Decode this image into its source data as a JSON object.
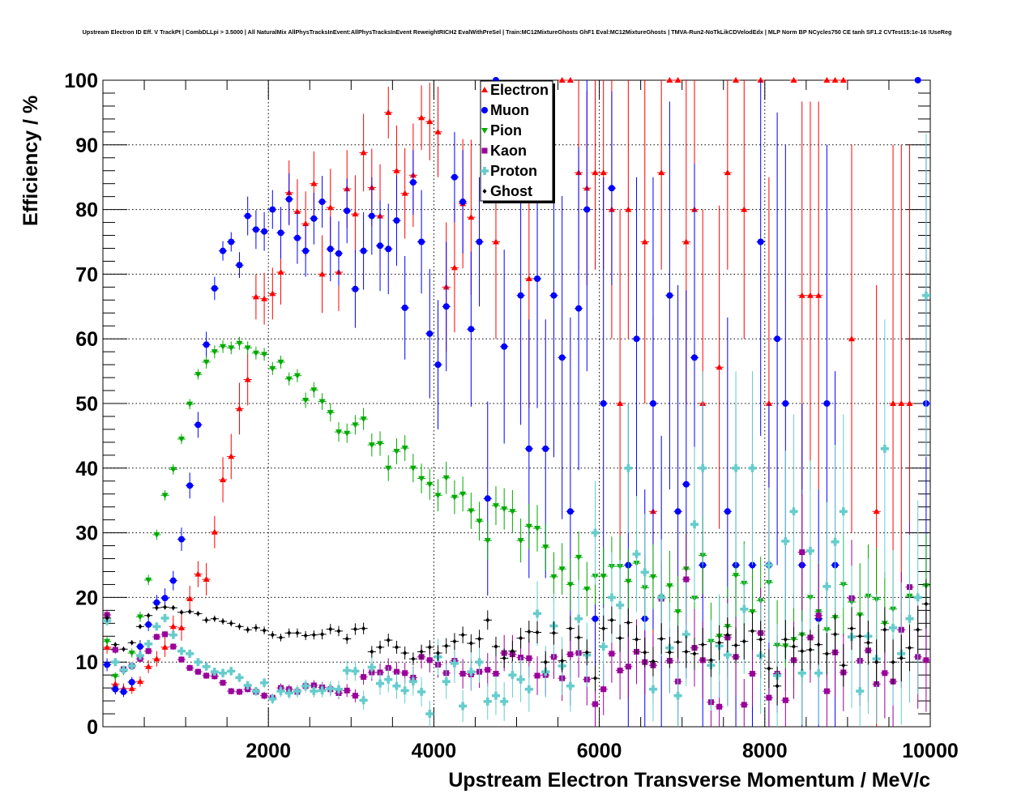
{
  "chart_data": {
    "type": "scatter",
    "title": "Upstream Electron ID Eff. V TrackPt | CombDLLpi > 3.5000 | All NaturalMix AllPhysTracksInEvent:AllPhysTracksInEvent ReweightRICH2 EvalWithPreSel | Train:MC12MixtureGhosts GhF1 Eval:MC12MixtureGhosts | TMVA-Run2-NoTkLikCDVelodEdx | MLP Norm BP NCycles750 CE tanh SF1.2 CVTest15:1e-16 !UseReg",
    "xlabel": "Upstream Electron Transverse Momentum / MeV/c",
    "ylabel": "Efficiency / %",
    "xlim": [
      0,
      10000
    ],
    "ylim": [
      0,
      100
    ],
    "bin_width": 100,
    "bin_start": 50,
    "xticks": [
      2000,
      4000,
      6000,
      8000,
      10000
    ],
    "yticks": [
      0,
      10,
      20,
      30,
      40,
      50,
      60,
      70,
      80,
      90,
      100
    ],
    "grid": true,
    "legend_position": "top-center",
    "series": [
      {
        "name": "Electron",
        "color": "#ff0000",
        "marker": "triangle-up",
        "values": [
          12.3,
          6.6,
          5.9,
          5.9,
          7,
          9.3,
          10.5,
          12.3,
          15.5,
          15.3,
          19.8,
          23.6,
          22.8,
          30.1,
          38.2,
          41.8,
          49.2,
          53.7,
          66.5,
          66.2,
          67,
          70.3,
          82.6,
          79.7,
          77.8,
          84,
          70,
          80.3,
          70.3,
          83.2,
          79.3,
          88.8,
          83.4,
          79,
          95,
          86,
          82.5,
          85.3,
          94.2,
          93.6,
          92,
          68,
          71,
          80.9,
          78.8,
          null,
          null,
          75,
          null,
          null,
          null,
          69.3,
          null,
          null,
          null,
          100,
          100,
          85.7,
          83.3,
          85.7,
          85.7,
          80,
          50,
          80,
          null,
          75,
          33.3,
          85.7,
          100,
          100,
          75,
          80,
          50,
          null,
          55.6,
          85.7,
          100,
          80,
          null,
          100,
          50,
          null,
          null,
          100,
          66.7,
          66.7,
          66.7,
          100,
          100,
          100,
          60,
          null,
          null,
          33.3,
          null,
          50,
          50,
          50,
          null,
          null
        ],
        "errors": [
          1,
          0.8,
          0.8,
          0.8,
          0.8,
          1,
          1.2,
          1.5,
          1.7,
          2,
          2,
          2,
          2.5,
          2.5,
          3.5,
          3.5,
          4,
          4,
          3.5,
          4,
          4,
          5,
          5,
          5,
          5,
          5,
          6,
          6,
          6,
          6,
          6,
          6,
          6,
          8,
          4,
          7,
          7,
          8,
          5,
          6,
          7,
          10,
          10,
          10,
          12,
          0,
          0,
          15,
          0,
          0,
          0,
          20,
          0,
          0,
          0,
          0,
          0,
          15,
          15,
          15,
          15,
          20,
          30,
          20,
          0,
          25,
          30,
          15,
          0,
          0,
          25,
          20,
          30,
          0,
          25,
          15,
          0,
          20,
          0,
          0,
          35,
          0,
          0,
          0,
          30,
          30,
          30,
          0,
          0,
          0,
          30,
          0,
          0,
          35,
          0,
          40,
          40,
          40,
          0,
          0
        ]
      },
      {
        "name": "Muon",
        "color": "#0000ff",
        "marker": "circle",
        "values": [
          9.6,
          5.8,
          5.4,
          6.9,
          12.4,
          15.8,
          19.2,
          19.9,
          22.6,
          29,
          37.3,
          46.7,
          59.1,
          67.8,
          73.6,
          75,
          71.4,
          79,
          76.9,
          76.6,
          80,
          76.4,
          81.6,
          75.6,
          73.6,
          78.6,
          81.2,
          73.9,
          73.2,
          79.8,
          67.7,
          73.6,
          79,
          74.4,
          73.9,
          78.3,
          64.8,
          84.2,
          75,
          60.8,
          56,
          65,
          85,
          81.2,
          61.5,
          75,
          35.3,
          100,
          58.8,
          null,
          66.7,
          43,
          69.3,
          43,
          66.7,
          57.1,
          33.3,
          64.7,
          80,
          16.7,
          50,
          83.3,
          null,
          25,
          60,
          16.7,
          50,
          20,
          66.7,
          33.3,
          37.5,
          57.1,
          25,
          null,
          null,
          33.3,
          25,
          null,
          25,
          75,
          25,
          60,
          50,
          null,
          25,
          null,
          16.7,
          50,
          25,
          null,
          null,
          null,
          null,
          null,
          null,
          null,
          null,
          null,
          100,
          50
        ],
        "errors": [
          1,
          0.8,
          0.8,
          0.8,
          1,
          1,
          1.2,
          1.5,
          1.5,
          1.8,
          2,
          2,
          2,
          1.8,
          1.5,
          1.5,
          2,
          3,
          3,
          3,
          3,
          4,
          4,
          4,
          4,
          4,
          4,
          5,
          5,
          5,
          6,
          6,
          6,
          7,
          7,
          7,
          8,
          5,
          8,
          10,
          10,
          10,
          7,
          8,
          12,
          10,
          15,
          0,
          15,
          0,
          20,
          20,
          20,
          20,
          25,
          25,
          30,
          25,
          25,
          20,
          35,
          15,
          0,
          25,
          25,
          20,
          35,
          25,
          30,
          35,
          30,
          30,
          25,
          0,
          0,
          30,
          25,
          0,
          25,
          30,
          25,
          35,
          40,
          0,
          25,
          0,
          20,
          40,
          30,
          0,
          0,
          0,
          0,
          0,
          0,
          0,
          0,
          0,
          0,
          40
        ]
      },
      {
        "name": "Pion",
        "color": "#00aa00",
        "marker": "triangle-down",
        "values": [
          13.2,
          7.8,
          8.6,
          11.4,
          17,
          22.7,
          29.7,
          35.8,
          39.8,
          44.5,
          49.9,
          54.5,
          56.4,
          58,
          58.8,
          58.6,
          59.3,
          58.6,
          57.8,
          57.6,
          55.4,
          56.4,
          53.8,
          54.3,
          50.5,
          52.1,
          50.3,
          48.6,
          45.6,
          45.4,
          46.7,
          47.6,
          43.6,
          43.8,
          40,
          42.6,
          43.1,
          40,
          38.4,
          37.5,
          35.8,
          38.5,
          35.5,
          36,
          33.4,
          31.8,
          28.8,
          34.2,
          33.7,
          33.3,
          28.8,
          31,
          30.7,
          27.8,
          23.2,
          24.4,
          22,
          26.2,
          21.3,
          23.3,
          23.3,
          24.8,
          24.8,
          22.5,
          25.3,
          21.5,
          23.2,
          20,
          21.8,
          17.8,
          24.4,
          19.9,
          26.5,
          13.2,
          14,
          15.5,
          23.4,
          22.2,
          17.8,
          19.5,
          22.3,
          12.6,
          12.5,
          13.5,
          14.2,
          20,
          17.8,
          15,
          16.9,
          22,
          19.3,
          17.3,
          20.2,
          19.7,
          16,
          18.2,
          null,
          20.2,
          null,
          21.8
        ],
        "errors": [
          0.8,
          0.6,
          0.6,
          0.7,
          0.8,
          0.8,
          0.8,
          0.8,
          0.8,
          0.8,
          0.8,
          0.8,
          1,
          1,
          1,
          1,
          1,
          1,
          1,
          1,
          1,
          1,
          1,
          1,
          1.2,
          1.2,
          1.3,
          1.4,
          1.5,
          1.5,
          1.5,
          1.7,
          1.8,
          1.9,
          2,
          2,
          2,
          2.2,
          2.3,
          2.4,
          2.5,
          2.5,
          2.6,
          2.7,
          2.8,
          3,
          3,
          3,
          3.2,
          3.3,
          3.4,
          3.5,
          3.6,
          3.7,
          3.8,
          4,
          4,
          4,
          4.2,
          4.4,
          4.5,
          4.6,
          4.8,
          5,
          5,
          5,
          5,
          5.2,
          5.4,
          5.5,
          5.6,
          5.8,
          6,
          6,
          6,
          6.2,
          6.4,
          6.5,
          6.6,
          6.8,
          7,
          7,
          7,
          7.2,
          7.4,
          7.5,
          7.6,
          7.8,
          8,
          8,
          8,
          8,
          8,
          8,
          8,
          8,
          0,
          8,
          0,
          8
        ]
      },
      {
        "name": "Kaon",
        "color": "#990099",
        "marker": "square",
        "values": [
          17.3,
          11.9,
          8.9,
          9.4,
          10.5,
          11.7,
          13.9,
          14.3,
          12.4,
          10.4,
          9.1,
          8.5,
          7.9,
          7.8,
          6.8,
          5.5,
          5.4,
          5.8,
          5.4,
          4.8,
          4.5,
          6,
          5.8,
          5.4,
          6.3,
          6.4,
          6.1,
          5.8,
          5.2,
          5.6,
          4.8,
          7.7,
          8.4,
          8.4,
          9.1,
          8.5,
          8.3,
          7.6,
          10.8,
          10.3,
          9.6,
          8.3,
          10.2,
          8.2,
          8.1,
          8.5,
          8.8,
          8.2,
          11.4,
          11.2,
          10.7,
          10.6,
          7.9,
          8,
          10.8,
          7.5,
          11.2,
          11.4,
          7.3,
          3.5,
          5.8,
          11.3,
          8.7,
          9.3,
          11.6,
          10,
          9.5,
          19.8,
          10.2,
          7,
          22.8,
          12.2,
          10.3,
          3.8,
          3.1,
          13.8,
          10.8,
          3.4,
          8.2,
          14.5,
          4.5,
          8.2,
          4.1,
          10.3,
          27,
          13.8,
          17.2,
          5.5,
          11.5,
          8.4,
          19.9,
          10.2,
          11.8,
          6.6,
          8.3,
          7,
          15,
          21.6,
          10.8,
          10.3
        ],
        "errors": [
          0.8,
          0.6,
          0.5,
          0.5,
          0.5,
          0.5,
          0.5,
          0.5,
          0.5,
          0.5,
          0.5,
          0.5,
          0.5,
          0.5,
          0.5,
          0.5,
          0.5,
          0.5,
          0.6,
          0.6,
          0.6,
          0.7,
          0.7,
          0.7,
          0.8,
          0.8,
          0.8,
          0.9,
          0.9,
          1,
          1,
          1.2,
          1.3,
          1.4,
          1.5,
          1.5,
          1.6,
          1.7,
          1.8,
          1.9,
          2,
          2,
          2.2,
          2.3,
          2.4,
          2.5,
          2.6,
          2.7,
          2.8,
          3,
          3,
          3,
          3,
          3.2,
          3.4,
          3.5,
          3.6,
          3.8,
          4,
          3.5,
          4,
          4.5,
          4.5,
          5,
          5,
          5,
          5,
          6,
          5,
          5,
          7,
          6,
          6,
          4,
          4,
          6,
          6,
          4,
          5,
          7,
          5,
          6,
          5,
          6,
          9,
          7,
          8,
          6,
          7,
          6,
          9,
          7,
          8,
          6,
          7,
          7,
          9,
          10,
          8,
          8
        ]
      },
      {
        "name": "Proton",
        "color": "#66cccc",
        "marker": "cross",
        "values": [
          16.4,
          10,
          8.8,
          9.4,
          11,
          12.8,
          15.5,
          16.8,
          14.2,
          11.7,
          11.3,
          10,
          9.3,
          8.5,
          8.3,
          8.6,
          7.6,
          6.4,
          5.5,
          6.8,
          4.3,
          5.5,
          5.2,
          5.5,
          6.3,
          5.5,
          5.6,
          5.9,
          5.8,
          8.7,
          8.6,
          4.1,
          9.2,
          6.7,
          7.3,
          6.3,
          5.6,
          7,
          5.4,
          2,
          10.8,
          7,
          9.8,
          3.2,
          8.5,
          10,
          3.9,
          4.8,
          3.9,
          8,
          7.3,
          5.8,
          17.5,
          8.5,
          15.6,
          9.4,
          6.3,
          16.7,
          11.1,
          30,
          12.4,
          20,
          18.8,
          40,
          26.7,
          23.9,
          5.8,
          20,
          12.2,
          4.8,
          14.3,
          31.3,
          40,
          9.5,
          12.5,
          11.1,
          40,
          18.2,
          40,
          11,
          25,
          7.9,
          28.7,
          33.3,
          8.3,
          27.2,
          8.3,
          21.7,
          28.6,
          33.3,
          13.9,
          5.5,
          14,
          10.5,
          43,
          15.3,
          11.3,
          16.7,
          20,
          66.7
        ],
        "errors": [
          0.8,
          0.6,
          0.5,
          0.5,
          0.5,
          0.5,
          0.6,
          0.6,
          0.6,
          0.6,
          0.6,
          0.6,
          0.6,
          0.6,
          0.7,
          0.7,
          0.7,
          0.7,
          0.7,
          0.8,
          0.8,
          0.9,
          0.9,
          1,
          1,
          1,
          1.1,
          1.2,
          1.3,
          1.5,
          1.5,
          1.5,
          1.8,
          1.8,
          2,
          2,
          2,
          2.2,
          2.3,
          2,
          2.8,
          2.7,
          3,
          2.5,
          3,
          3.2,
          2.8,
          3,
          3,
          3.5,
          3.5,
          3.5,
          5,
          4,
          5,
          4.5,
          4,
          6,
          5,
          8,
          6,
          7,
          7,
          10,
          9,
          9,
          5,
          9,
          7,
          5,
          8,
          12,
          15,
          7,
          8,
          8,
          15,
          10,
          15,
          9,
          12,
          8,
          14,
          15,
          8,
          14,
          8,
          13,
          15,
          15,
          11,
          7,
          12,
          10,
          20,
          12,
          11,
          13,
          15,
          25
        ]
      },
      {
        "name": "Ghost",
        "color": "#000000",
        "marker": "diamond",
        "values": [
          16.8,
          12.7,
          12,
          13,
          15.5,
          17.2,
          18.4,
          18.5,
          18.4,
          17.7,
          17.8,
          17.5,
          16.5,
          16.7,
          16.3,
          16,
          15.5,
          15,
          15.3,
          14.9,
          14.2,
          13.8,
          14.5,
          14.5,
          14.1,
          14.2,
          14.3,
          15.1,
          14.8,
          13.6,
          15.1,
          15.2,
          11.6,
          12.3,
          13.4,
          12.3,
          11.4,
          10.5,
          11.6,
          12.3,
          11.4,
          12.5,
          13.2,
          14.2,
          12.9,
          13.6,
          16.5,
          12.4,
          10.6,
          11.7,
          13.7,
          14.7,
          14.6,
          10,
          14.5,
          10.2,
          15.2,
          13.8,
          11.5,
          7.5,
          15.2,
          16.5,
          13.7,
          16.1,
          13.5,
          11.5,
          10.1,
          13.6,
          11.5,
          13.1,
          11.6,
          11.3,
          12.7,
          10.3,
          13,
          14.2,
          12.6,
          13.2,
          14.8,
          13.5,
          9,
          6.3,
          13.5,
          12.4,
          11.7,
          11.9,
          12.7,
          11.3,
          14.3,
          9.5,
          15.2,
          14,
          13,
          10,
          15,
          10,
          10.6,
          12.2,
          15,
          19
        ],
        "errors": [
          0.6,
          0.4,
          0.4,
          0.4,
          0.4,
          0.4,
          0.4,
          0.4,
          0.4,
          0.4,
          0.4,
          0.4,
          0.5,
          0.5,
          0.5,
          0.5,
          0.5,
          0.5,
          0.6,
          0.6,
          0.6,
          0.6,
          0.7,
          0.7,
          0.7,
          0.7,
          0.8,
          0.8,
          0.8,
          0.8,
          0.9,
          0.9,
          0.9,
          1,
          1,
          1,
          1,
          1,
          1.1,
          1.1,
          1.2,
          1.2,
          1.3,
          1.3,
          1.4,
          1.4,
          1.5,
          1.5,
          1.5,
          1.6,
          1.6,
          1.7,
          1.7,
          1.7,
          1.8,
          1.8,
          1.9,
          1.9,
          2,
          2,
          2,
          2.1,
          2.1,
          2.2,
          2.2,
          2.3,
          2.3,
          2.4,
          2.4,
          2.5,
          2.5,
          2.5,
          2.6,
          2.6,
          2.7,
          2.7,
          2.8,
          2.8,
          2.9,
          2.9,
          3,
          3,
          3,
          3,
          3,
          3.1,
          3.1,
          3.2,
          3.2,
          3.3,
          3.3,
          3.4,
          3.4,
          3.5,
          3.5,
          3.5,
          3.6,
          3.6,
          3.7,
          3.8
        ]
      }
    ]
  }
}
